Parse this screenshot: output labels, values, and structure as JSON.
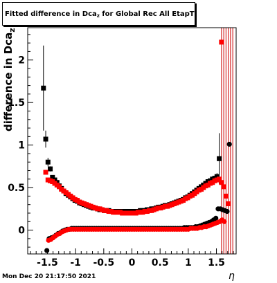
{
  "chart_data": {
    "type": "scatter",
    "title_main": "Fitted difference in Dca",
    "title_sub": "z",
    "title_rest": " for Global Rec All EtapT",
    "xlabel": "η",
    "ylabel": "difference in Dca",
    "ylabel_sub": "z",
    "xlim": [
      -1.85,
      1.85
    ],
    "ylim": [
      -0.28,
      2.38
    ],
    "x_ticks": [
      -1.5,
      -1,
      -0.5,
      0,
      0.5,
      1,
      1.5
    ],
    "x_tick_labels": [
      "-1.5",
      "-1",
      "-0.5",
      "0",
      "0.5",
      "1",
      "1.5"
    ],
    "y_ticks": [
      0,
      0.5,
      1,
      1.5,
      2
    ],
    "y_tick_labels": [
      "0",
      "0.5",
      "1",
      "1.5",
      "2"
    ],
    "timestamp": "Mon Dec 20 21:17:50 2021",
    "series": [
      {
        "marker": "square",
        "color": "#000000",
        "x": [
          -1.57,
          -1.53,
          -1.49,
          -1.45,
          -1.41,
          -1.37,
          -1.33,
          -1.29,
          -1.25,
          -1.21,
          -1.17,
          -1.13,
          -1.09,
          -1.05,
          -1.01,
          -0.97,
          -0.93,
          -0.89,
          -0.85,
          -0.81,
          -0.77,
          -0.73,
          -0.69,
          -0.65,
          -0.61,
          -0.57,
          -0.53,
          -0.49,
          -0.45,
          -0.41,
          -0.37,
          -0.33,
          -0.29,
          -0.25,
          -0.21,
          -0.17,
          -0.13,
          -0.09,
          -0.05,
          -0.01,
          0.03,
          0.07,
          0.11,
          0.15,
          0.19,
          0.23,
          0.27,
          0.31,
          0.35,
          0.39,
          0.43,
          0.47,
          0.51,
          0.55,
          0.59,
          0.63,
          0.67,
          0.71,
          0.75,
          0.79,
          0.83,
          0.87,
          0.91,
          0.95,
          0.99,
          1.03,
          1.07,
          1.11,
          1.15,
          1.19,
          1.23,
          1.27,
          1.31,
          1.35,
          1.39,
          1.43,
          1.47,
          1.51,
          1.55
        ],
        "y": [
          1.67,
          1.07,
          0.8,
          0.72,
          0.62,
          0.59,
          0.56,
          0.52,
          0.49,
          0.46,
          0.43,
          0.41,
          0.39,
          0.37,
          0.35,
          0.34,
          0.32,
          0.31,
          0.3,
          0.29,
          0.28,
          0.27,
          0.26,
          0.26,
          0.25,
          0.24,
          0.24,
          0.23,
          0.23,
          0.23,
          0.22,
          0.22,
          0.22,
          0.22,
          0.22,
          0.22,
          0.22,
          0.22,
          0.22,
          0.22,
          0.22,
          0.22,
          0.22,
          0.23,
          0.23,
          0.23,
          0.24,
          0.24,
          0.25,
          0.25,
          0.26,
          0.27,
          0.27,
          0.28,
          0.29,
          0.29,
          0.3,
          0.31,
          0.32,
          0.33,
          0.34,
          0.35,
          0.36,
          0.38,
          0.39,
          0.41,
          0.43,
          0.45,
          0.47,
          0.49,
          0.51,
          0.53,
          0.55,
          0.57,
          0.58,
          0.6,
          0.61,
          0.63,
          0.84
        ],
        "yerr": [
          0.5,
          0.1,
          0.05,
          0.03,
          0.02,
          0.02,
          0.02,
          0.01,
          0.01,
          0.01,
          0.01,
          0.01,
          0.01,
          0.01,
          0.01,
          0.01,
          0.01,
          0.01,
          0.01,
          0.01,
          0.01,
          0.01,
          0.01,
          0.01,
          0.01,
          0.01,
          0.01,
          0.01,
          0.01,
          0.01,
          0.01,
          0.01,
          0.01,
          0.01,
          0.01,
          0.01,
          0.01,
          0.01,
          0.01,
          0.01,
          0.01,
          0.01,
          0.01,
          0.01,
          0.01,
          0.01,
          0.01,
          0.01,
          0.01,
          0.01,
          0.01,
          0.01,
          0.01,
          0.01,
          0.01,
          0.01,
          0.01,
          0.01,
          0.01,
          0.01,
          0.01,
          0.01,
          0.01,
          0.01,
          0.01,
          0.01,
          0.01,
          0.01,
          0.01,
          0.01,
          0.01,
          0.01,
          0.01,
          0.01,
          0.02,
          0.02,
          0.03,
          0.04,
          0.3
        ]
      },
      {
        "marker": "square",
        "color": "#ff0000",
        "x": [
          -1.53,
          -1.49,
          -1.45,
          -1.41,
          -1.37,
          -1.33,
          -1.29,
          -1.25,
          -1.21,
          -1.17,
          -1.13,
          -1.09,
          -1.05,
          -1.01,
          -0.97,
          -0.93,
          -0.89,
          -0.85,
          -0.81,
          -0.77,
          -0.73,
          -0.69,
          -0.65,
          -0.61,
          -0.57,
          -0.53,
          -0.49,
          -0.45,
          -0.41,
          -0.37,
          -0.33,
          -0.29,
          -0.25,
          -0.21,
          -0.17,
          -0.13,
          -0.09,
          -0.05,
          -0.01,
          0.03,
          0.07,
          0.11,
          0.15,
          0.19,
          0.23,
          0.27,
          0.31,
          0.35,
          0.39,
          0.43,
          0.47,
          0.51,
          0.55,
          0.59,
          0.63,
          0.67,
          0.71,
          0.75,
          0.79,
          0.83,
          0.87,
          0.91,
          0.95,
          0.99,
          1.03,
          1.07,
          1.11,
          1.15,
          1.19,
          1.23,
          1.27,
          1.31,
          1.35,
          1.39,
          1.43,
          1.47,
          1.51,
          1.55,
          1.59,
          1.63,
          1.67,
          1.71
        ],
        "y": [
          0.68,
          0.59,
          0.58,
          0.57,
          0.55,
          0.53,
          0.51,
          0.48,
          0.46,
          0.44,
          0.42,
          0.4,
          0.38,
          0.36,
          0.35,
          0.33,
          0.32,
          0.31,
          0.3,
          0.29,
          0.28,
          0.27,
          0.26,
          0.25,
          0.25,
          0.24,
          0.23,
          0.23,
          0.22,
          0.22,
          0.21,
          0.21,
          0.21,
          0.21,
          0.2,
          0.2,
          0.2,
          0.2,
          0.2,
          0.2,
          0.2,
          0.21,
          0.21,
          0.21,
          0.22,
          0.22,
          0.23,
          0.23,
          0.24,
          0.25,
          0.26,
          0.26,
          0.27,
          0.28,
          0.28,
          0.29,
          0.3,
          0.31,
          0.32,
          0.33,
          0.34,
          0.35,
          0.37,
          0.38,
          0.4,
          0.41,
          0.43,
          0.45,
          0.47,
          0.48,
          0.5,
          0.52,
          0.53,
          0.55,
          0.56,
          0.58,
          0.59,
          0.6,
          0.56,
          0.51,
          0.4,
          0.31
        ]
      },
      {
        "marker": "circle",
        "color": "#000000",
        "x": [
          -1.51,
          -1.47,
          -1.43,
          -1.39,
          -1.35,
          -1.31,
          -1.27,
          -1.23,
          -1.19,
          -1.15,
          -1.11,
          -1.07,
          -1.03,
          -0.99,
          -0.95,
          -0.91,
          -0.87,
          -0.83,
          -0.79,
          -0.75,
          -0.71,
          -0.67,
          -0.63,
          -0.59,
          -0.55,
          -0.51,
          -0.47,
          -0.43,
          -0.39,
          -0.35,
          -0.31,
          -0.27,
          -0.23,
          -0.19,
          -0.15,
          -0.11,
          -0.07,
          -0.03,
          0.01,
          0.05,
          0.09,
          0.13,
          0.17,
          0.21,
          0.25,
          0.29,
          0.33,
          0.37,
          0.41,
          0.45,
          0.49,
          0.53,
          0.57,
          0.61,
          0.65,
          0.69,
          0.73,
          0.77,
          0.81,
          0.85,
          0.89,
          0.93,
          0.97,
          1.01,
          1.05,
          1.09,
          1.13,
          1.17,
          1.21,
          1.25,
          1.29,
          1.33,
          1.37,
          1.41,
          1.45,
          1.49,
          1.53,
          1.57,
          1.61,
          1.65,
          1.69,
          1.73
        ],
        "y": [
          -0.24,
          -0.1,
          -0.09,
          -0.08,
          -0.06,
          -0.04,
          -0.03,
          -0.01,
          0.0,
          0.01,
          0.01,
          0.02,
          0.02,
          0.02,
          0.02,
          0.02,
          0.02,
          0.02,
          0.02,
          0.02,
          0.02,
          0.02,
          0.02,
          0.02,
          0.02,
          0.02,
          0.02,
          0.02,
          0.02,
          0.02,
          0.02,
          0.02,
          0.02,
          0.02,
          0.02,
          0.02,
          0.02,
          0.02,
          0.02,
          0.02,
          0.02,
          0.02,
          0.02,
          0.02,
          0.02,
          0.02,
          0.02,
          0.02,
          0.02,
          0.02,
          0.02,
          0.02,
          0.02,
          0.02,
          0.02,
          0.02,
          0.02,
          0.02,
          0.02,
          0.02,
          0.02,
          0.03,
          0.03,
          0.03,
          0.03,
          0.03,
          0.04,
          0.04,
          0.05,
          0.06,
          0.07,
          0.08,
          0.09,
          0.1,
          0.12,
          0.14,
          0.25,
          0.25,
          0.24,
          0.23,
          0.22,
          1.01
        ]
      },
      {
        "marker": "circle",
        "color": "#ff0000",
        "x": [
          -1.48,
          -1.44,
          -1.4,
          -1.36,
          -1.32,
          -1.28,
          -1.24,
          -1.2,
          -1.16,
          -1.12,
          -1.08,
          -1.04,
          -1.0,
          -0.96,
          -0.92,
          -0.88,
          -0.84,
          -0.8,
          -0.76,
          -0.72,
          -0.68,
          -0.64,
          -0.6,
          -0.56,
          -0.52,
          -0.48,
          -0.44,
          -0.4,
          -0.36,
          -0.32,
          -0.28,
          -0.24,
          -0.2,
          -0.16,
          -0.12,
          -0.08,
          -0.04,
          0.0,
          0.04,
          0.08,
          0.12,
          0.16,
          0.2,
          0.24,
          0.28,
          0.32,
          0.36,
          0.4,
          0.44,
          0.48,
          0.52,
          0.56,
          0.6,
          0.64,
          0.68,
          0.72,
          0.76,
          0.8,
          0.84,
          0.88,
          0.92,
          0.96,
          1.0,
          1.04,
          1.08,
          1.12,
          1.16,
          1.2,
          1.24,
          1.28,
          1.32,
          1.36,
          1.4,
          1.44,
          1.48,
          1.52,
          1.56,
          1.6,
          1.64
        ],
        "y": [
          -0.12,
          -0.11,
          -0.09,
          -0.07,
          -0.05,
          -0.04,
          -0.02,
          -0.01,
          0.0,
          0.01,
          0.01,
          0.01,
          0.01,
          0.01,
          0.01,
          0.01,
          0.01,
          0.01,
          0.01,
          0.01,
          0.01,
          0.01,
          0.01,
          0.01,
          0.01,
          0.01,
          0.01,
          0.01,
          0.01,
          0.01,
          0.01,
          0.01,
          0.01,
          0.01,
          0.01,
          0.01,
          0.01,
          0.01,
          0.01,
          0.01,
          0.01,
          0.01,
          0.01,
          0.01,
          0.01,
          0.01,
          0.01,
          0.01,
          0.01,
          0.01,
          0.01,
          0.01,
          0.01,
          0.01,
          0.01,
          0.01,
          0.01,
          0.01,
          0.01,
          0.01,
          0.01,
          0.01,
          0.01,
          0.02,
          0.02,
          0.02,
          0.02,
          0.03,
          0.03,
          0.04,
          0.04,
          0.05,
          0.06,
          0.07,
          0.08,
          0.09,
          0.1,
          0.12,
          0.1
        ]
      },
      {
        "marker": "square",
        "color": "#ff0000",
        "x": [
          1.59
        ],
        "y": [
          2.21
        ]
      }
    ],
    "red_vlines_x": [
      1.59,
      1.63,
      1.67,
      1.71,
      1.75,
      1.79
    ]
  }
}
